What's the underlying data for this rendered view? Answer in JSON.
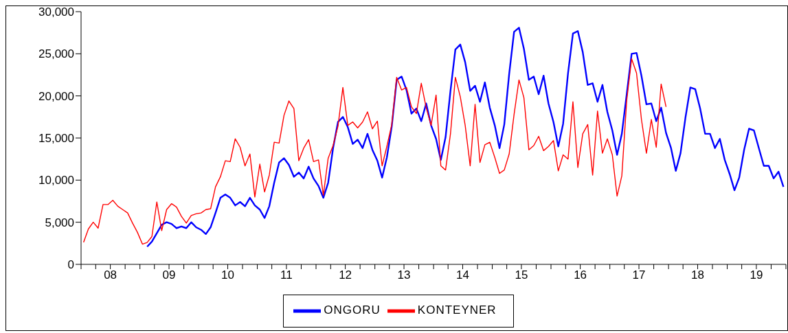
{
  "chart_data": {
    "type": "line",
    "x": [
      "2008-01",
      "2008-02",
      "2008-03",
      "2008-04",
      "2008-05",
      "2008-06",
      "2008-07",
      "2008-08",
      "2008-09",
      "2008-10",
      "2008-11",
      "2008-12",
      "2009-01",
      "2009-02",
      "2009-03",
      "2009-04",
      "2009-05",
      "2009-06",
      "2009-07",
      "2009-08",
      "2009-09",
      "2009-10",
      "2009-11",
      "2009-12",
      "2010-01",
      "2010-02",
      "2010-03",
      "2010-04",
      "2010-05",
      "2010-06",
      "2010-07",
      "2010-08",
      "2010-09",
      "2010-10",
      "2010-11",
      "2010-12",
      "2011-01",
      "2011-02",
      "2011-03",
      "2011-04",
      "2011-05",
      "2011-06",
      "2011-07",
      "2011-08",
      "2011-09",
      "2011-10",
      "2011-11",
      "2011-12",
      "2012-01",
      "2012-02",
      "2012-03",
      "2012-04",
      "2012-05",
      "2012-06",
      "2012-07",
      "2012-08",
      "2012-09",
      "2012-10",
      "2012-11",
      "2012-12",
      "2013-01",
      "2013-02",
      "2013-03",
      "2013-04",
      "2013-05",
      "2013-06",
      "2013-07",
      "2013-08",
      "2013-09",
      "2013-10",
      "2013-11",
      "2013-12",
      "2014-01",
      "2014-02",
      "2014-03",
      "2014-04",
      "2014-05",
      "2014-06",
      "2014-07",
      "2014-08",
      "2014-09",
      "2014-10",
      "2014-11",
      "2014-12",
      "2015-01",
      "2015-02",
      "2015-03",
      "2015-04",
      "2015-05",
      "2015-06",
      "2015-07",
      "2015-08",
      "2015-09",
      "2015-10",
      "2015-11",
      "2015-12",
      "2016-01",
      "2016-02",
      "2016-03",
      "2016-04",
      "2016-05",
      "2016-06",
      "2016-07",
      "2016-08",
      "2016-09",
      "2016-10",
      "2016-11",
      "2016-12",
      "2017-01",
      "2017-02",
      "2017-03",
      "2017-04",
      "2017-05",
      "2017-06",
      "2017-07",
      "2017-08",
      "2017-09",
      "2017-10",
      "2017-11",
      "2017-12",
      "2018-01",
      "2018-02",
      "2018-03",
      "2018-04",
      "2018-05",
      "2018-06",
      "2018-07",
      "2018-08",
      "2018-09",
      "2018-10",
      "2018-11",
      "2018-12",
      "2019-01",
      "2019-02",
      "2019-03",
      "2019-04",
      "2019-05",
      "2019-06",
      "2019-07",
      "2019-08",
      "2019-09",
      "2019-10",
      "2019-11",
      "2019-12"
    ],
    "series": [
      {
        "name": "ONGORU",
        "color": "#0000ff",
        "values": [
          null,
          null,
          null,
          null,
          null,
          null,
          null,
          null,
          null,
          null,
          null,
          null,
          null,
          2100,
          2700,
          3700,
          4700,
          5000,
          4800,
          4300,
          4500,
          4300,
          5000,
          4400,
          4100,
          3600,
          4400,
          6100,
          7900,
          8300,
          7900,
          7000,
          7400,
          6900,
          7900,
          7000,
          6500,
          5500,
          6900,
          9700,
          12100,
          12600,
          11800,
          10400,
          10900,
          10200,
          11600,
          10200,
          9300,
          7900,
          9700,
          13800,
          16900,
          17500,
          16300,
          14300,
          14800,
          13800,
          15500,
          13600,
          12300,
          10300,
          12700,
          16400,
          21900,
          22300,
          20700,
          17900,
          18500,
          17000,
          19100,
          16500,
          14900,
          12400,
          15100,
          20600,
          25500,
          26100,
          24000,
          20600,
          21200,
          19300,
          21600,
          18600,
          16500,
          13800,
          16600,
          22600,
          27600,
          28100,
          25600,
          21900,
          22300,
          20200,
          22400,
          19100,
          16900,
          14000,
          16700,
          22700,
          27400,
          27700,
          25200,
          21300,
          21500,
          19300,
          21300,
          18100,
          15900,
          13000,
          15500,
          20200,
          25000,
          25100,
          22400,
          19000,
          19100,
          17000,
          18600,
          15600,
          13800,
          11100,
          13200,
          17400,
          21000,
          20800,
          18500,
          15500,
          15500,
          13800,
          14900,
          12400,
          10700,
          8800,
          10300,
          13600,
          16100,
          15900,
          13800,
          11700,
          11700,
          10200,
          11000,
          9200
        ]
      },
      {
        "name": "KONTEYNER",
        "color": "#ff0000",
        "values": [
          2600,
          4200,
          5000,
          4300,
          7100,
          7100,
          7600,
          6900,
          6500,
          6100,
          4900,
          3800,
          2400,
          2600,
          3300,
          7400,
          4000,
          6500,
          7200,
          6800,
          5700,
          4900,
          5800,
          6000,
          6100,
          6500,
          6600,
          9200,
          10400,
          12300,
          12200,
          14900,
          13900,
          11700,
          13100,
          8000,
          11900,
          8600,
          10600,
          14500,
          14400,
          17700,
          19400,
          18500,
          12300,
          13800,
          14800,
          12200,
          12400,
          8200,
          12600,
          14100,
          16400,
          21000,
          16500,
          16900,
          16200,
          16900,
          18100,
          16100,
          17000,
          11700,
          14000,
          16600,
          22200,
          20700,
          21000,
          18700,
          17900,
          21500,
          18600,
          16500,
          20100,
          11700,
          11200,
          15500,
          22200,
          19900,
          16500,
          11700,
          19000,
          12100,
          14200,
          14500,
          12700,
          10800,
          11200,
          13100,
          17800,
          21900,
          19800,
          13600,
          14100,
          15200,
          13500,
          14000,
          14700,
          11100,
          13000,
          12500,
          19300,
          11500,
          15500,
          16600,
          10600,
          18200,
          13200,
          14900,
          13000,
          8100,
          10500,
          19500,
          24400,
          22700,
          17200,
          13200,
          17200,
          13900,
          21400,
          18700,
          null,
          null,
          null,
          null,
          null,
          null,
          null,
          null,
          null,
          null,
          null,
          null,
          null,
          null,
          null,
          null,
          null,
          null,
          null,
          null,
          null,
          null,
          null,
          null
        ]
      }
    ],
    "xlim": [
      "2008-01-01",
      "2020-01-01"
    ],
    "xticks": [
      {
        "value": "2008-01-01",
        "label": null
      },
      {
        "value": "2008-04-01",
        "label": null
      },
      {
        "value": "2008-07-01",
        "label": "08"
      },
      {
        "value": "2008-10-01",
        "label": null
      },
      {
        "value": "2009-01-01",
        "label": null
      },
      {
        "value": "2009-04-01",
        "label": null
      },
      {
        "value": "2009-07-01",
        "label": "09"
      },
      {
        "value": "2009-10-01",
        "label": null
      },
      {
        "value": "2010-01-01",
        "label": null
      },
      {
        "value": "2010-04-01",
        "label": null
      },
      {
        "value": "2010-07-01",
        "label": "10"
      },
      {
        "value": "2010-10-01",
        "label": null
      },
      {
        "value": "2011-01-01",
        "label": null
      },
      {
        "value": "2011-04-01",
        "label": null
      },
      {
        "value": "2011-07-01",
        "label": "11"
      },
      {
        "value": "2011-10-01",
        "label": null
      },
      {
        "value": "2012-01-01",
        "label": null
      },
      {
        "value": "2012-04-01",
        "label": null
      },
      {
        "value": "2012-07-01",
        "label": "12"
      },
      {
        "value": "2012-10-01",
        "label": null
      },
      {
        "value": "2013-01-01",
        "label": null
      },
      {
        "value": "2013-04-01",
        "label": null
      },
      {
        "value": "2013-07-01",
        "label": "13"
      },
      {
        "value": "2013-10-01",
        "label": null
      },
      {
        "value": "2014-01-01",
        "label": null
      },
      {
        "value": "2014-04-01",
        "label": null
      },
      {
        "value": "2014-07-01",
        "label": "14"
      },
      {
        "value": "2014-10-01",
        "label": null
      },
      {
        "value": "2015-01-01",
        "label": null
      },
      {
        "value": "2015-04-01",
        "label": null
      },
      {
        "value": "2015-07-01",
        "label": "15"
      },
      {
        "value": "2015-10-01",
        "label": null
      },
      {
        "value": "2016-01-01",
        "label": null
      },
      {
        "value": "2016-04-01",
        "label": null
      },
      {
        "value": "2016-07-01",
        "label": "16"
      },
      {
        "value": "2016-10-01",
        "label": null
      },
      {
        "value": "2017-01-01",
        "label": null
      },
      {
        "value": "2017-04-01",
        "label": null
      },
      {
        "value": "2017-07-01",
        "label": "17"
      },
      {
        "value": "2017-10-01",
        "label": null
      },
      {
        "value": "2018-01-01",
        "label": null
      },
      {
        "value": "2018-04-01",
        "label": null
      },
      {
        "value": "2018-07-01",
        "label": "18"
      },
      {
        "value": "2018-10-01",
        "label": null
      },
      {
        "value": "2019-01-01",
        "label": null
      },
      {
        "value": "2019-04-01",
        "label": null
      },
      {
        "value": "2019-07-01",
        "label": "19"
      },
      {
        "value": "2019-10-01",
        "label": null
      },
      {
        "value": "2020-01-01",
        "label": null
      }
    ],
    "ylim": [
      0,
      30000
    ],
    "yticks": [
      {
        "value": 0,
        "label": "0"
      },
      {
        "value": 5000,
        "label": "5,000"
      },
      {
        "value": 10000,
        "label": "10,000"
      },
      {
        "value": 15000,
        "label": "15,000"
      },
      {
        "value": 20000,
        "label": "20,000"
      },
      {
        "value": 25000,
        "label": "25,000"
      },
      {
        "value": 30000,
        "label": "30,000"
      }
    ],
    "legend": "bottom"
  }
}
